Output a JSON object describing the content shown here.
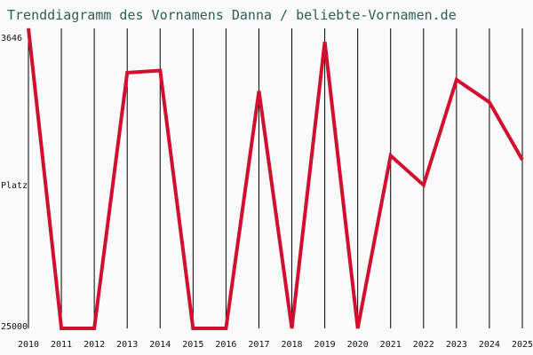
{
  "chart_data": {
    "type": "line",
    "title": "Trenddiagramm des Vornamens Danna / beliebte-Vornamen.de",
    "ylabel": "Platz",
    "y_axis": "rank, inverted (1 at top is not shown; 3646 best shown, 25000 at bottom)",
    "ylim": [
      3646,
      25000
    ],
    "y_tick_labels": [
      "3646",
      "25000"
    ],
    "x": [
      "2010",
      "2011",
      "2012",
      "2013",
      "2014",
      "2015",
      "2016",
      "2017",
      "2018",
      "2019",
      "2020",
      "2021",
      "2022",
      "2023",
      "2024",
      "2025"
    ],
    "series": [
      {
        "values": [
          3646,
          25000,
          25000,
          6800,
          6650,
          25000,
          25000,
          8100,
          25000,
          4600,
          25000,
          12700,
          14800,
          7300,
          8900,
          13000
        ]
      }
    ],
    "grid": "vertical lines at each year",
    "colors": {
      "line": "#d0102e",
      "grid": "#000000",
      "title": "#2e5e54",
      "background": "#fafafa"
    }
  }
}
